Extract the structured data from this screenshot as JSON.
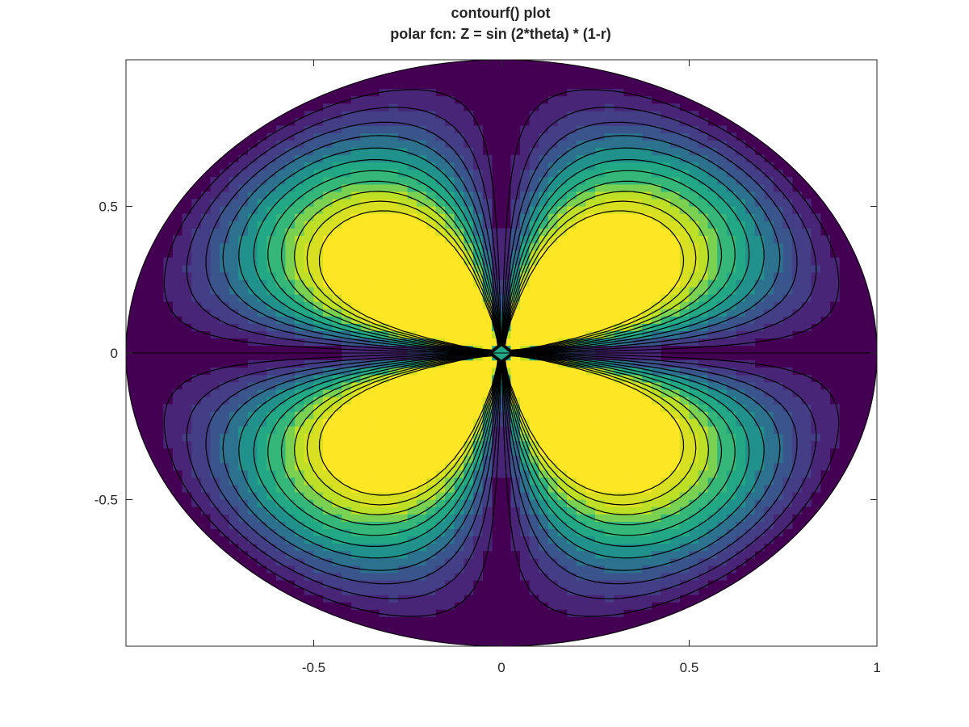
{
  "chart_data": {
    "type": "contourf",
    "title_lines": [
      "contourf() plot",
      "polar fcn: Z = sin (2*theta) * (1-r)"
    ],
    "xlabel": "",
    "ylabel": "",
    "xlim": [
      -1,
      1
    ],
    "ylim": [
      -1,
      1
    ],
    "xticks": [
      -0.5,
      0,
      0.5,
      1
    ],
    "xtick_labels": [
      "-0.5",
      "0",
      "0.5",
      "1"
    ],
    "yticks": [
      -0.5,
      0,
      0.5
    ],
    "ytick_labels": [
      "-0.5",
      "0",
      "0.5"
    ],
    "grid": false,
    "domain": "unit disk",
    "function": "Z = sin(2*theta) * (1 - r), folded to absolute value for the lower half",
    "levels": [
      0.0,
      0.0833,
      0.1667,
      0.25,
      0.3333,
      0.4167,
      0.5,
      0.5833,
      0.6667,
      0.75,
      0.8333,
      0.9167,
      1.0
    ],
    "fill_colors": [
      "#440154",
      "#482576",
      "#433e85",
      "#3a548c",
      "#2c728e",
      "#21918c",
      "#22a884",
      "#35b779",
      "#7ad151",
      "#bddf26",
      "#d9e021",
      "#fde725"
    ],
    "contour_line_color": "#000000"
  }
}
